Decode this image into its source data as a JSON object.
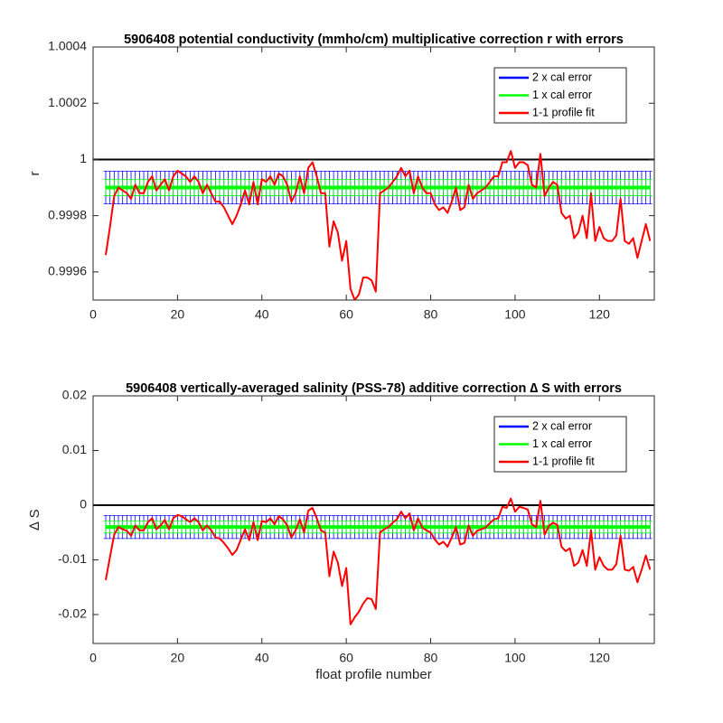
{
  "chart_data": [
    {
      "type": "line",
      "title": "5906408 potential conductivity (mmho/cm) multiplicative correction r with errors",
      "ylabel": "r",
      "xlim": [
        0,
        133
      ],
      "xticks": [
        0,
        20,
        40,
        60,
        80,
        100,
        120
      ],
      "ylim": [
        0.9995,
        1.0004
      ],
      "yticks": [
        1.0004,
        1.0002,
        1,
        0.9998,
        0.9996
      ],
      "reference": 1,
      "legend": "upper right",
      "x": [
        3,
        4,
        5,
        6,
        7,
        8,
        9,
        10,
        11,
        12,
        13,
        14,
        15,
        16,
        17,
        18,
        19,
        20,
        21,
        22,
        23,
        24,
        25,
        26,
        27,
        28,
        29,
        30,
        31,
        32,
        33,
        34,
        35,
        36,
        37,
        38,
        39,
        40,
        41,
        42,
        43,
        44,
        45,
        46,
        47,
        48,
        49,
        50,
        51,
        52,
        53,
        54,
        55,
        56,
        57,
        58,
        59,
        60,
        61,
        62,
        63,
        64,
        65,
        66,
        67,
        68,
        69,
        70,
        71,
        72,
        73,
        74,
        75,
        76,
        77,
        78,
        79,
        80,
        81,
        82,
        83,
        84,
        85,
        86,
        87,
        88,
        89,
        90,
        91,
        92,
        93,
        94,
        95,
        96,
        97,
        98,
        99,
        100,
        101,
        102,
        103,
        104,
        105,
        106,
        107,
        108,
        109,
        110,
        111,
        112,
        113,
        114,
        115,
        116,
        117,
        118,
        119,
        120,
        121,
        122,
        123,
        124,
        125,
        126,
        127,
        128,
        129,
        130,
        131,
        132
      ],
      "series": [
        {
          "name": "2 x cal error",
          "color": "#0000ff",
          "value": 0.9999,
          "error": 5.8e-05
        },
        {
          "name": "1 x cal error",
          "color": "#00ff00",
          "value": 0.9999,
          "error": 2.9e-05
        },
        {
          "name": "1-1 profile fit",
          "color": "#ff0000",
          "values": [
            0.99966,
            0.99976,
            0.99987,
            0.9999,
            0.99989,
            0.99988,
            0.99986,
            0.99991,
            0.99988,
            0.99988,
            0.99992,
            0.99994,
            0.99989,
            0.99991,
            0.99993,
            0.99989,
            0.99994,
            0.99996,
            0.99995,
            0.99994,
            0.99992,
            0.99994,
            0.99992,
            0.99988,
            0.99991,
            0.99988,
            0.99985,
            0.99985,
            0.99983,
            0.9998,
            0.99977,
            0.9998,
            0.99984,
            0.99989,
            0.99984,
            0.99992,
            0.99984,
            0.99993,
            0.99992,
            0.99994,
            0.99991,
            0.99995,
            0.99994,
            0.99991,
            0.99985,
            0.99988,
            0.99994,
            0.99988,
            0.99997,
            0.99999,
            0.99994,
            0.99988,
            0.99988,
            0.99969,
            0.99978,
            0.99974,
            0.99964,
            0.99971,
            0.99954,
            0.9995,
            0.99952,
            0.99958,
            0.99958,
            0.99957,
            0.99953,
            0.99988,
            0.99989,
            0.9999,
            0.99992,
            0.99994,
            0.99997,
            0.99994,
            0.99996,
            0.99988,
            0.99994,
            0.9999,
            0.99988,
            0.99988,
            0.99984,
            0.99982,
            0.99983,
            0.99981,
            0.99985,
            0.9999,
            0.99982,
            0.99983,
            0.99991,
            0.99986,
            0.99988,
            0.99989,
            0.9999,
            0.99992,
            0.99994,
            0.99994,
            0.99999,
            0.99999,
            1.00003,
            0.99997,
            0.99999,
            0.99999,
            0.99998,
            0.99991,
            0.9999,
            1.00002,
            0.99987,
            0.9999,
            0.99992,
            0.99991,
            0.99981,
            0.99979,
            0.9998,
            0.99972,
            0.99974,
            0.9998,
            0.99972,
            0.99988,
            0.99971,
            0.99976,
            0.99972,
            0.99971,
            0.99971,
            0.99973,
            0.99986,
            0.99971,
            0.9997,
            0.99972,
            0.99965,
            0.99971,
            0.99977,
            0.99971
          ]
        }
      ]
    },
    {
      "type": "line",
      "title": "5906408 vertically-averaged salinity (PSS-78) additive correction ∆ S with errors",
      "ylabel": "∆ S",
      "xlabel": "float profile number",
      "xlim": [
        0,
        133
      ],
      "xticks": [
        0,
        20,
        40,
        60,
        80,
        100,
        120
      ],
      "ylim": [
        -0.0253,
        0.02
      ],
      "yticks": [
        0.02,
        0.01,
        0,
        -0.01,
        -0.02
      ],
      "reference": 0,
      "legend": "upper right",
      "x": [
        3,
        4,
        5,
        6,
        7,
        8,
        9,
        10,
        11,
        12,
        13,
        14,
        15,
        16,
        17,
        18,
        19,
        20,
        21,
        22,
        23,
        24,
        25,
        26,
        27,
        28,
        29,
        30,
        31,
        32,
        33,
        34,
        35,
        36,
        37,
        38,
        39,
        40,
        41,
        42,
        43,
        44,
        45,
        46,
        47,
        48,
        49,
        50,
        51,
        52,
        53,
        54,
        55,
        56,
        57,
        58,
        59,
        60,
        61,
        62,
        63,
        64,
        65,
        66,
        67,
        68,
        69,
        70,
        71,
        72,
        73,
        74,
        75,
        76,
        77,
        78,
        79,
        80,
        81,
        82,
        83,
        84,
        85,
        86,
        87,
        88,
        89,
        90,
        91,
        92,
        93,
        94,
        95,
        96,
        97,
        98,
        99,
        100,
        101,
        102,
        103,
        104,
        105,
        106,
        107,
        108,
        109,
        110,
        111,
        112,
        113,
        114,
        115,
        116,
        117,
        118,
        119,
        120,
        121,
        122,
        123,
        124,
        125,
        126,
        127,
        128,
        129,
        130,
        131,
        132
      ],
      "series": [
        {
          "name": "2 x cal error",
          "color": "#0000ff",
          "value": -0.004,
          "error": 0.0021
        },
        {
          "name": "1 x cal error",
          "color": "#00ff00",
          "value": -0.004,
          "error": 0.0011
        },
        {
          "name": "1-1 profile fit",
          "color": "#ff0000",
          "values": [
            -0.0137,
            -0.0095,
            -0.0054,
            -0.004,
            -0.0044,
            -0.0047,
            -0.0056,
            -0.0037,
            -0.0046,
            -0.0046,
            -0.0031,
            -0.0024,
            -0.0044,
            -0.0037,
            -0.0027,
            -0.0044,
            -0.0024,
            -0.0018,
            -0.002,
            -0.0026,
            -0.0031,
            -0.0024,
            -0.0031,
            -0.0046,
            -0.0037,
            -0.0046,
            -0.0059,
            -0.0061,
            -0.0069,
            -0.0079,
            -0.0091,
            -0.0082,
            -0.0063,
            -0.0044,
            -0.0064,
            -0.0031,
            -0.0064,
            -0.0029,
            -0.0031,
            -0.0024,
            -0.0035,
            -0.002,
            -0.0026,
            -0.0037,
            -0.0059,
            -0.0046,
            -0.0026,
            -0.005,
            -0.001,
            -0.0005,
            -0.0024,
            -0.0046,
            -0.005,
            -0.013,
            -0.0085,
            -0.0105,
            -0.0148,
            -0.0115,
            -0.0218,
            -0.0205,
            -0.0195,
            -0.018,
            -0.017,
            -0.0172,
            -0.019,
            -0.005,
            -0.0044,
            -0.004,
            -0.0032,
            -0.0026,
            -0.0012,
            -0.0024,
            -0.0015,
            -0.0046,
            -0.0024,
            -0.0041,
            -0.0046,
            -0.005,
            -0.0063,
            -0.0072,
            -0.0067,
            -0.0076,
            -0.0059,
            -0.004,
            -0.0072,
            -0.0069,
            -0.0037,
            -0.0056,
            -0.0047,
            -0.0044,
            -0.0041,
            -0.0033,
            -0.0026,
            -0.0024,
            -0.0003,
            -0.0005,
            0.0012,
            -0.0012,
            -0.0003,
            -0.0005,
            -0.0008,
            -0.0035,
            -0.004,
            0.0008,
            -0.0054,
            -0.0038,
            -0.0032,
            -0.0036,
            -0.0076,
            -0.0084,
            -0.0079,
            -0.0111,
            -0.0105,
            -0.0082,
            -0.0111,
            -0.0046,
            -0.0118,
            -0.0095,
            -0.0111,
            -0.0118,
            -0.0118,
            -0.0108,
            -0.0056,
            -0.0118,
            -0.012,
            -0.0113,
            -0.0141,
            -0.0118,
            -0.0092,
            -0.0118
          ]
        }
      ]
    }
  ]
}
